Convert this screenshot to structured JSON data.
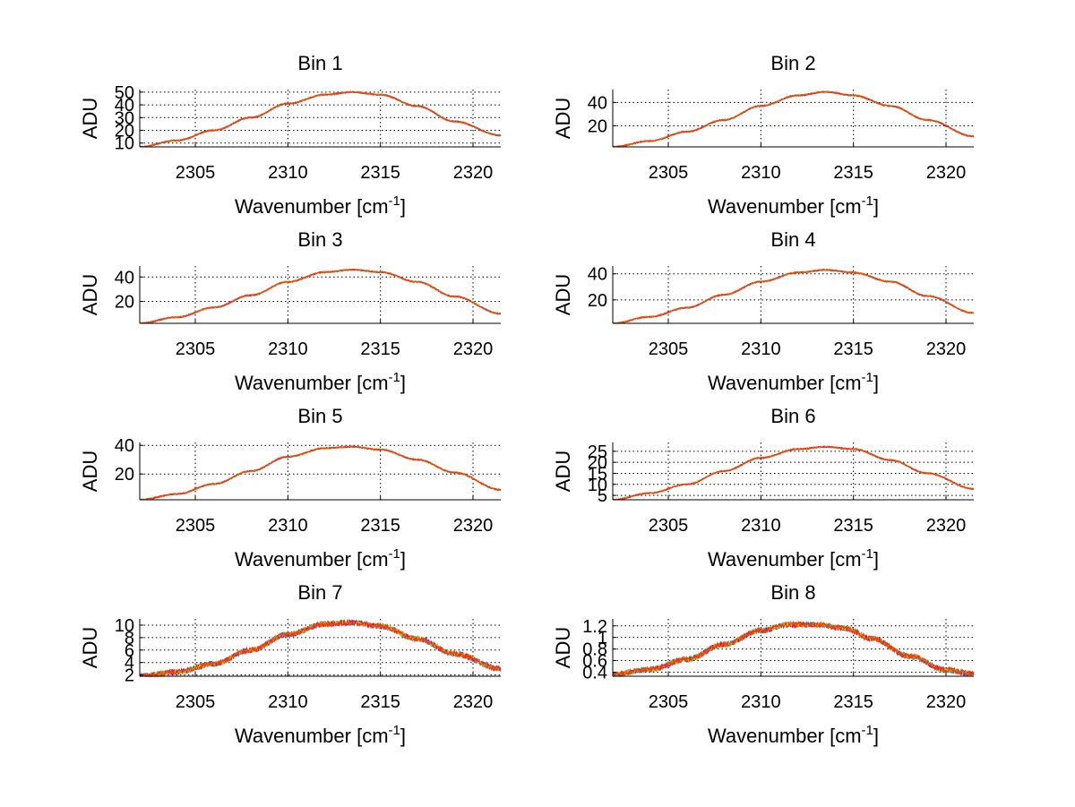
{
  "x_axis_label": {
    "main": "Wavenumber [cm",
    "sup": "-1",
    "close": "]"
  },
  "series_colors": [
    "#0000ff",
    "#008000",
    "#ff0000",
    "#00bfbf",
    "#bf00bf",
    "#bfbf00",
    "#ff8000"
  ],
  "chart_data": [
    {
      "type": "line",
      "title": "Bin 1",
      "xlabel": "Wavenumber [cm-1]",
      "ylabel": "ADU",
      "xlim": [
        2302,
        2321.5
      ],
      "ylim": [
        7,
        52
      ],
      "xticks": [
        2305,
        2310,
        2315,
        2320
      ],
      "yticks": [
        10,
        20,
        30,
        40,
        50
      ],
      "grid": true,
      "x": [
        2302,
        2304,
        2306,
        2308,
        2310,
        2312,
        2313.5,
        2315,
        2317,
        2319,
        2321.5
      ],
      "y": [
        7,
        12,
        20,
        30,
        41,
        48,
        50,
        48,
        39,
        27,
        16
      ]
    },
    {
      "type": "line",
      "title": "Bin 2",
      "xlabel": "Wavenumber [cm-1]",
      "ylabel": "ADU",
      "xlim": [
        2302,
        2321.5
      ],
      "ylim": [
        2,
        51
      ],
      "xticks": [
        2305,
        2310,
        2315,
        2320
      ],
      "yticks": [
        20,
        40
      ],
      "grid": true,
      "x": [
        2302,
        2304,
        2306,
        2308,
        2310,
        2312,
        2313.5,
        2315,
        2317,
        2319,
        2321.5
      ],
      "y": [
        2,
        7,
        15,
        25,
        37,
        46,
        49,
        46,
        37,
        25,
        11
      ]
    },
    {
      "type": "line",
      "title": "Bin 3",
      "xlabel": "Wavenumber [cm-1]",
      "ylabel": "ADU",
      "xlim": [
        2302,
        2321.5
      ],
      "ylim": [
        2,
        49
      ],
      "xticks": [
        2305,
        2310,
        2315,
        2320
      ],
      "yticks": [
        20,
        40
      ],
      "grid": true,
      "x": [
        2302,
        2304,
        2306,
        2308,
        2310,
        2312,
        2313.5,
        2315,
        2317,
        2319,
        2321.5
      ],
      "y": [
        2,
        7,
        15,
        25,
        36,
        44,
        46,
        44,
        36,
        24,
        10
      ]
    },
    {
      "type": "line",
      "title": "Bin 4",
      "xlabel": "Wavenumber [cm-1]",
      "ylabel": "ADU",
      "xlim": [
        2302,
        2321.5
      ],
      "ylim": [
        2,
        46
      ],
      "xticks": [
        2305,
        2310,
        2315,
        2320
      ],
      "yticks": [
        20,
        40
      ],
      "grid": true,
      "x": [
        2302,
        2304,
        2306,
        2308,
        2310,
        2312,
        2313.5,
        2315,
        2317,
        2319,
        2321.5
      ],
      "y": [
        2,
        7,
        14,
        24,
        34,
        41,
        43,
        41,
        34,
        23,
        10
      ]
    },
    {
      "type": "line",
      "title": "Bin 5",
      "xlabel": "Wavenumber [cm-1]",
      "ylabel": "ADU",
      "xlim": [
        2302,
        2321.5
      ],
      "ylim": [
        2,
        42
      ],
      "xticks": [
        2305,
        2310,
        2315,
        2320
      ],
      "yticks": [
        20,
        40
      ],
      "grid": true,
      "x": [
        2302,
        2304,
        2306,
        2308,
        2310,
        2312,
        2313.5,
        2315,
        2317,
        2319,
        2321.5
      ],
      "y": [
        2,
        6,
        13,
        22,
        32,
        38,
        39,
        37,
        30,
        21,
        9
      ]
    },
    {
      "type": "line",
      "title": "Bin 6",
      "xlabel": "Wavenumber [cm-1]",
      "ylabel": "ADU",
      "xlim": [
        2302,
        2321.5
      ],
      "ylim": [
        3,
        29
      ],
      "xticks": [
        2305,
        2310,
        2315,
        2320
      ],
      "yticks": [
        5,
        10,
        15,
        20,
        25
      ],
      "grid": true,
      "x": [
        2302,
        2304,
        2306,
        2308,
        2310,
        2312,
        2313.5,
        2315,
        2317,
        2319,
        2321.5
      ],
      "y": [
        3,
        6,
        10,
        16,
        22,
        26,
        27,
        26,
        21,
        15,
        8
      ]
    },
    {
      "type": "line",
      "title": "Bin 7",
      "xlabel": "Wavenumber [cm-1]",
      "ylabel": "ADU",
      "xlim": [
        2302,
        2321.5
      ],
      "ylim": [
        1.8,
        11
      ],
      "xticks": [
        2305,
        2310,
        2315,
        2320
      ],
      "yticks": [
        2,
        4,
        6,
        8,
        10
      ],
      "grid": true,
      "x": [
        2302,
        2304,
        2306,
        2308,
        2310,
        2312,
        2313.5,
        2315,
        2317,
        2319,
        2321.5
      ],
      "y": [
        1.8,
        2.5,
        3.8,
        6.0,
        8.5,
        10.2,
        10.4,
        9.8,
        7.8,
        5.4,
        3.0
      ]
    },
    {
      "type": "line",
      "title": "Bin 8",
      "xlabel": "Wavenumber [cm-1]",
      "ylabel": "ADU",
      "xlim": [
        2302,
        2321.5
      ],
      "ylim": [
        0.33,
        1.32
      ],
      "xticks": [
        2305,
        2310,
        2315,
        2320
      ],
      "yticks": [
        0.4,
        0.6,
        0.8,
        1,
        1.2
      ],
      "grid": true,
      "x": [
        2302,
        2304,
        2306,
        2308,
        2310,
        2311.5,
        2313,
        2314.5,
        2316,
        2318,
        2320,
        2321.5
      ],
      "y": [
        0.36,
        0.45,
        0.62,
        0.88,
        1.12,
        1.22,
        1.22,
        1.16,
        0.98,
        0.68,
        0.44,
        0.37
      ]
    }
  ]
}
